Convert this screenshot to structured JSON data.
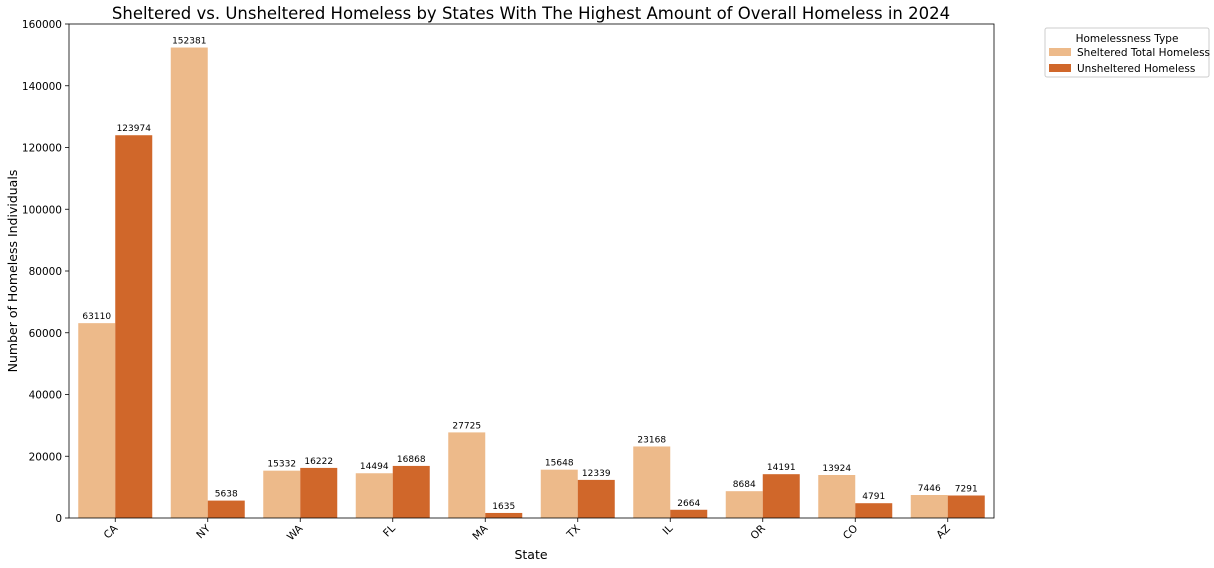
{
  "chart_data": {
    "type": "bar",
    "title": "Sheltered vs. Unsheltered Homeless by States With The Highest Amount of Overall Homeless in 2024",
    "xlabel": "State",
    "ylabel": "Number of Homeless Individuals",
    "categories": [
      "CA",
      "NY",
      "WA",
      "FL",
      "MA",
      "TX",
      "IL",
      "OR",
      "CO",
      "AZ"
    ],
    "series": [
      {
        "name": "Sheltered Total Homeless",
        "color": "#edba8a",
        "values": [
          63110,
          152381,
          15332,
          14494,
          27725,
          15648,
          23168,
          8684,
          13924,
          7446
        ]
      },
      {
        "name": "Unsheltered Homeless",
        "color": "#d0672a",
        "values": [
          123974,
          5638,
          16222,
          16868,
          1635,
          12339,
          2664,
          14191,
          4791,
          7291
        ]
      }
    ],
    "ylim": [
      0,
      160000
    ],
    "yticks": [
      0,
      20000,
      40000,
      60000,
      80000,
      100000,
      120000,
      140000,
      160000
    ],
    "grid": false,
    "legend": {
      "title": "Homelessness Type",
      "placement": "outside-top-right"
    }
  }
}
